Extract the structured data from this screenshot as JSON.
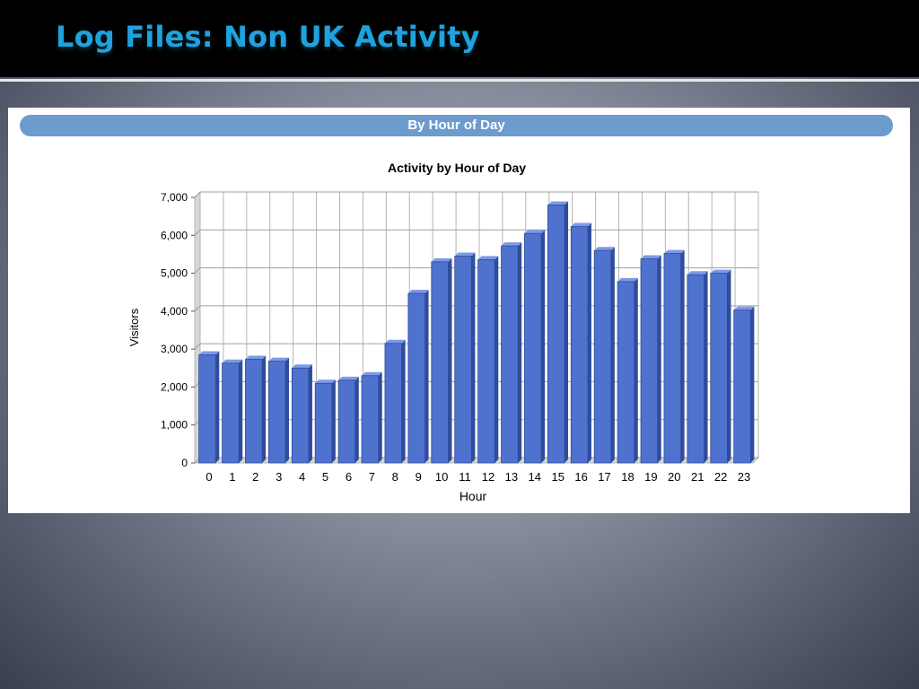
{
  "slide": {
    "title": "Log Files: Non UK Activity"
  },
  "panel": {
    "header": "By Hour of Day"
  },
  "colors": {
    "title": "#1fa3de",
    "bar": "#4f72cf",
    "panel_header": "#6c9ccd"
  },
  "chart_data": {
    "type": "bar",
    "title": "Activity by Hour of Day",
    "xlabel": "Hour",
    "ylabel": "Visitors",
    "ylim": [
      0,
      7000
    ],
    "yticks": [
      "0",
      "1,000",
      "2,000",
      "3,000",
      "4,000",
      "5,000",
      "6,000",
      "7,000"
    ],
    "grid": true,
    "categories": [
      "0",
      "1",
      "2",
      "3",
      "4",
      "5",
      "6",
      "7",
      "8",
      "9",
      "10",
      "11",
      "12",
      "13",
      "14",
      "15",
      "16",
      "17",
      "18",
      "19",
      "20",
      "21",
      "22",
      "23"
    ],
    "values": [
      2850,
      2630,
      2730,
      2680,
      2500,
      2100,
      2180,
      2300,
      3150,
      4470,
      5300,
      5450,
      5360,
      5720,
      6050,
      6800,
      6230,
      5600,
      4780,
      5380,
      5520,
      4960,
      5000,
      4030
    ]
  }
}
